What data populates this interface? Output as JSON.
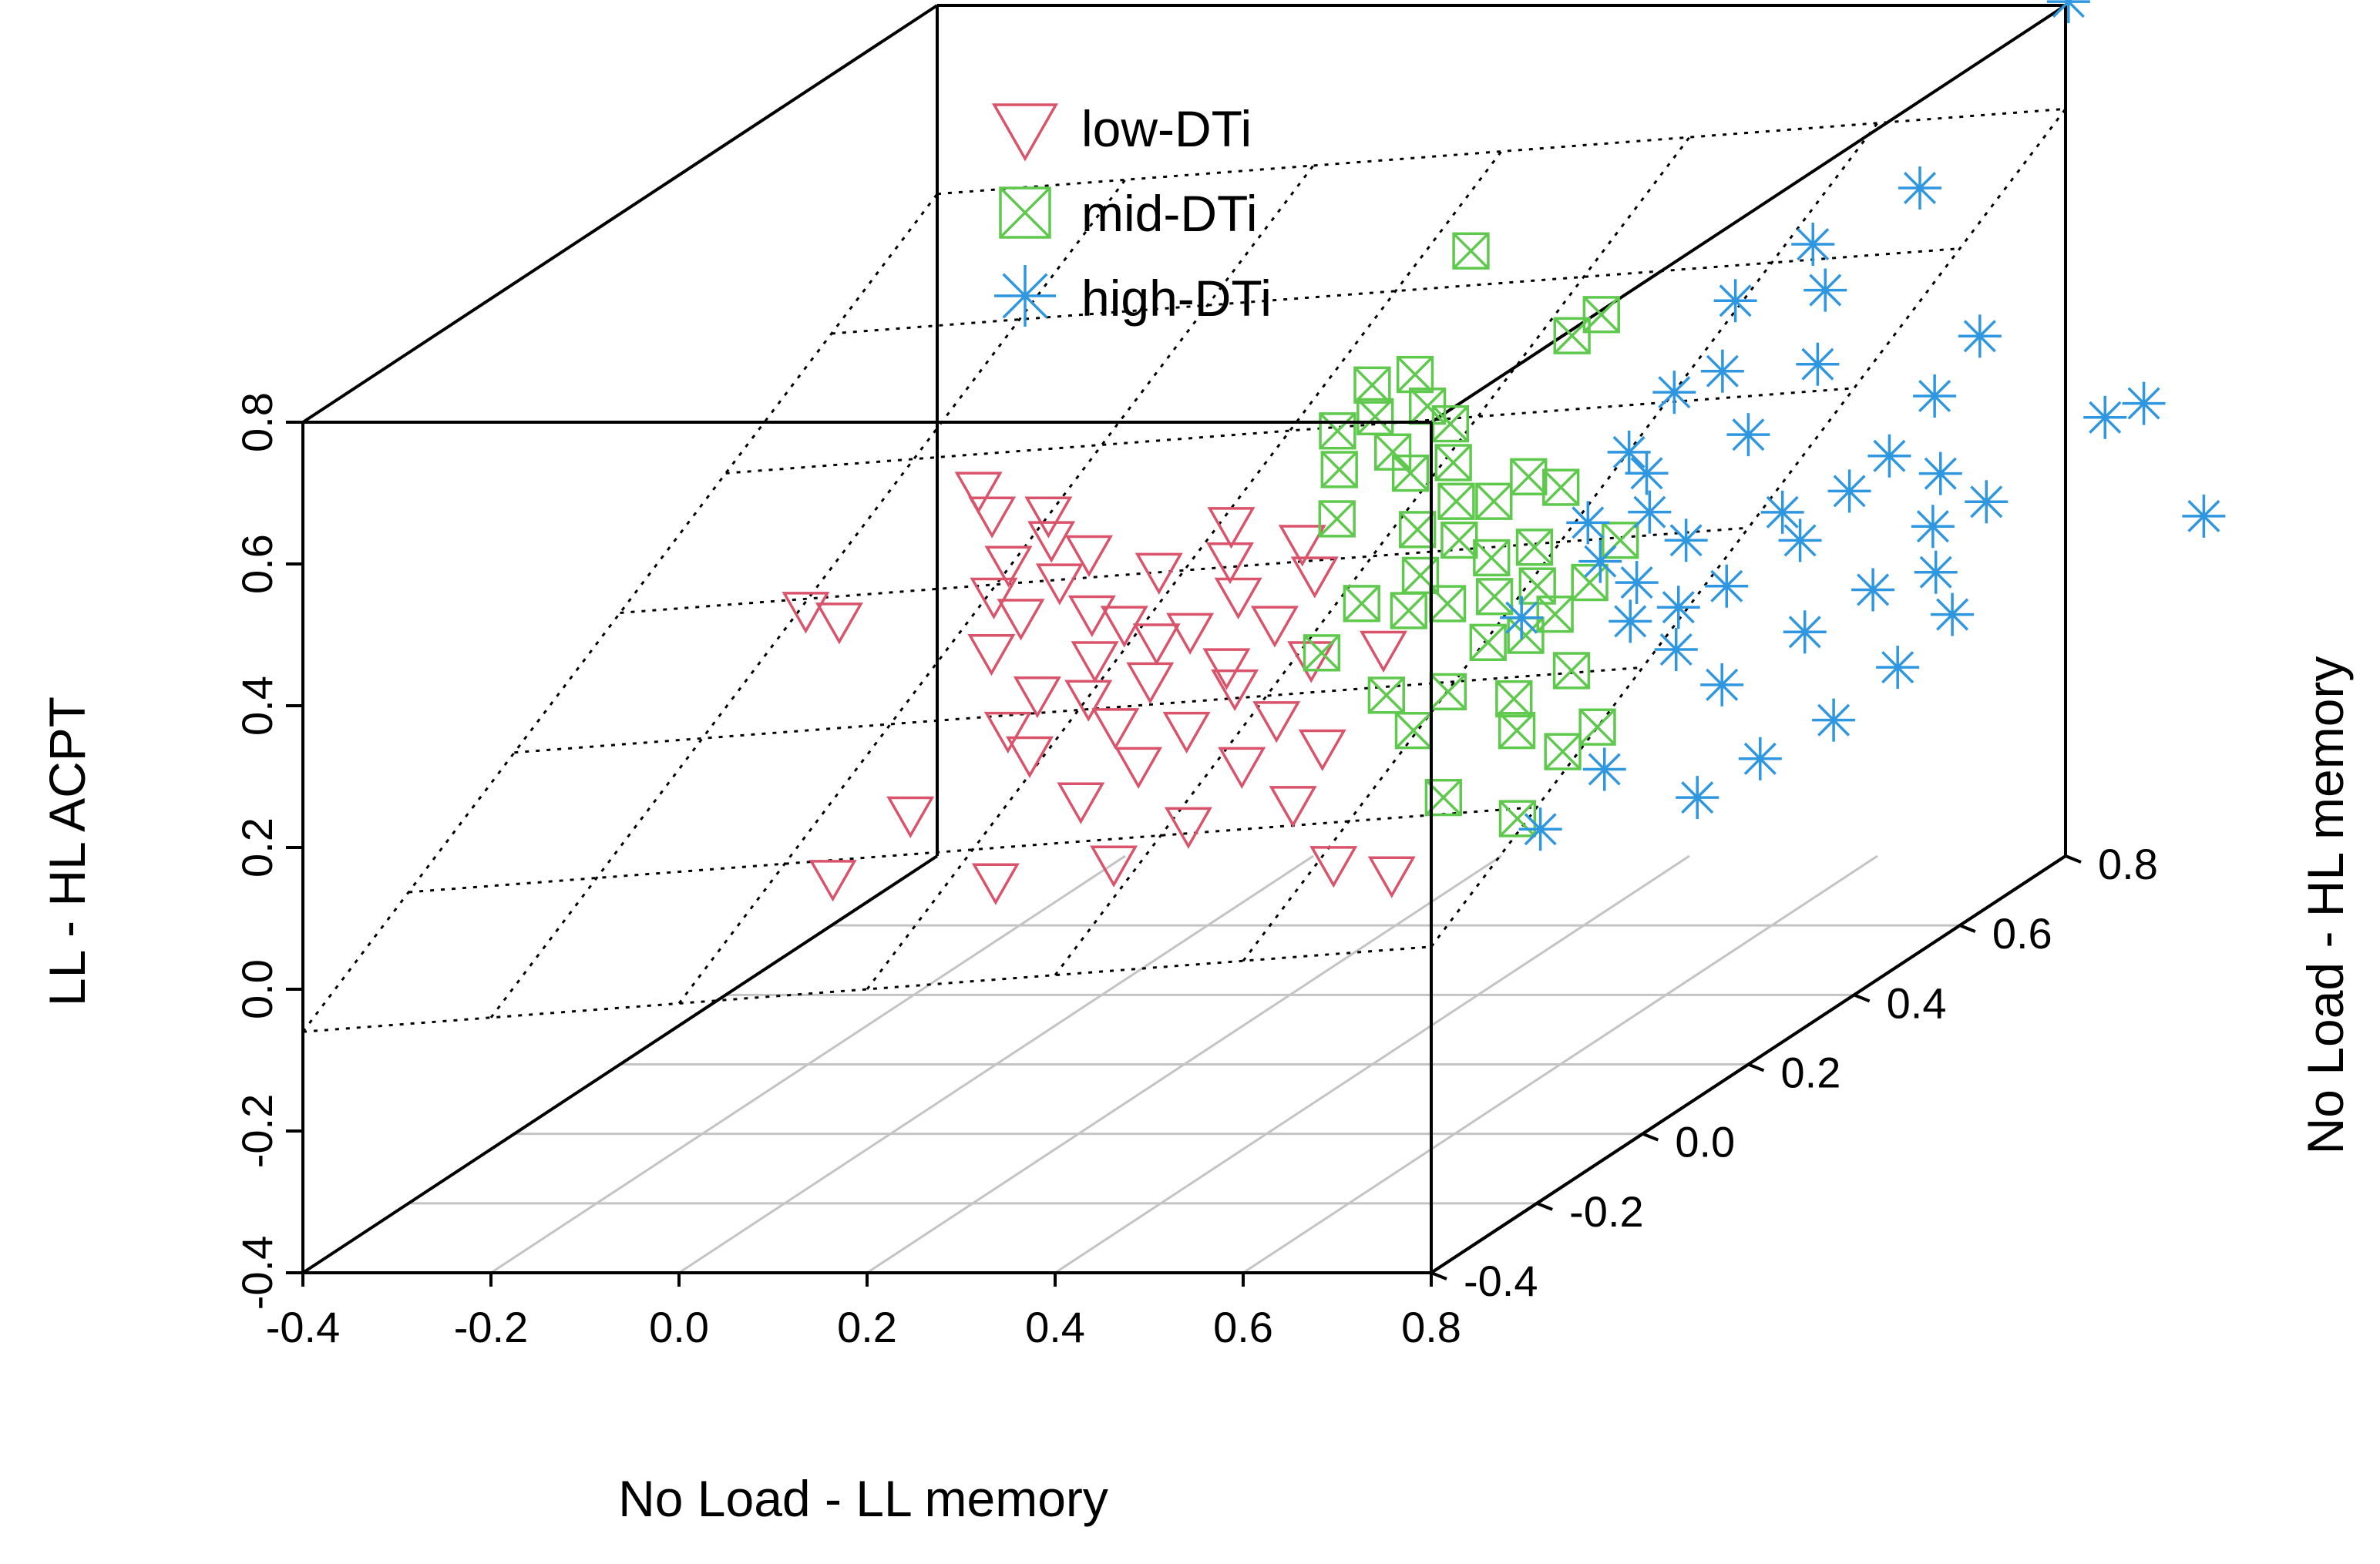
{
  "chart_data": {
    "type": "scatter3d",
    "title": "",
    "xlabel": "No Load - LL memory",
    "ylabel": "No Load - HL memory",
    "zlabel": "LL - HL ACPT",
    "xlim": [
      -0.4,
      0.8
    ],
    "ylim": [
      -0.4,
      0.8
    ],
    "zlim": [
      -0.4,
      0.8
    ],
    "x_ticks": [
      "-0.4",
      "-0.2",
      "0.0",
      "0.2",
      "0.4",
      "0.6",
      "0.8"
    ],
    "y_ticks": [
      "-0.4",
      "-0.2",
      "0.0",
      "0.2",
      "0.4",
      "0.6",
      "0.8"
    ],
    "z_ticks": [
      "-0.4",
      "-0.2",
      "0.0",
      "0.2",
      "0.4",
      "0.6",
      "0.8"
    ],
    "grid": "floor",
    "regression_plane": true,
    "legend_position": "top-center",
    "colors": {
      "low": "#d9536b",
      "mid": "#5ec94d",
      "high": "#2f96e0"
    },
    "series": [
      {
        "name": "low-DTi",
        "marker": "triangle-down",
        "color": "#d9536b",
        "points": [
          [
            -0.18,
            0.16,
            0.26
          ],
          [
            -0.15,
            0.17,
            0.24
          ],
          [
            -0.03,
            0.22,
            0.4
          ],
          [
            -0.01,
            0.21,
            0.37
          ],
          [
            0.02,
            0.16,
            0.28
          ],
          [
            0.04,
            0.12,
            0.22
          ],
          [
            0.06,
            0.14,
            0.26
          ],
          [
            0.03,
            0.17,
            0.32
          ],
          [
            0.05,
            0.21,
            0.37
          ],
          [
            0.07,
            0.18,
            0.35
          ],
          [
            0.09,
            0.16,
            0.3
          ],
          [
            0.11,
            0.18,
            0.33
          ],
          [
            0.08,
            0.08,
            0.13
          ],
          [
            0.1,
            0.1,
            0.17
          ],
          [
            0.13,
            0.15,
            0.26
          ],
          [
            0.12,
            0.05,
            0.11
          ],
          [
            0.15,
            0.12,
            0.21
          ],
          [
            0.17,
            0.14,
            0.25
          ],
          [
            0.19,
            0.17,
            0.31
          ],
          [
            0.16,
            0.09,
            0.17
          ],
          [
            0.2,
            0.07,
            0.14
          ],
          [
            0.22,
            0.1,
            0.19
          ],
          [
            0.21,
            0.13,
            0.23
          ],
          [
            0.18,
            0.04,
            0.05
          ],
          [
            0.24,
            0.14,
            0.24
          ],
          [
            0.26,
            0.18,
            0.32
          ],
          [
            0.23,
            0.06,
            0.09
          ],
          [
            0.27,
            0.08,
            0.13
          ],
          [
            0.29,
            0.12,
            0.2
          ],
          [
            0.28,
            0.16,
            0.28
          ],
          [
            0.31,
            0.1,
            0.18
          ],
          [
            0.33,
            0.14,
            0.25
          ],
          [
            0.3,
            0.03,
            0.02
          ],
          [
            0.34,
            0.06,
            0.09
          ],
          [
            0.36,
            0.09,
            0.14
          ],
          [
            0.35,
            0.18,
            0.3
          ],
          [
            0.38,
            0.12,
            0.21
          ],
          [
            0.4,
            0.05,
            0.04
          ],
          [
            0.42,
            0.07,
            0.11
          ],
          [
            0.46,
            0.02,
            -0.03
          ],
          [
            0.14,
            -0.05,
            -0.02
          ],
          [
            0.26,
            -0.04,
            0.0
          ],
          [
            0.55,
            -0.03,
            -0.02
          ],
          [
            -0.05,
            -0.02,
            -0.03
          ],
          [
            0.01,
            0.02,
            0.04
          ],
          [
            0.32,
            0.21,
            0.33
          ],
          [
            0.25,
            0.2,
            0.36
          ],
          [
            0.44,
            0.15,
            0.21
          ]
        ]
      },
      {
        "name": "mid-DTi",
        "marker": "boxed-x",
        "color": "#5ec94d",
        "points": [
          [
            0.37,
            0.44,
            0.63
          ],
          [
            0.5,
            0.4,
            0.53
          ],
          [
            0.52,
            0.42,
            0.55
          ],
          [
            0.29,
            0.33,
            0.43
          ],
          [
            0.31,
            0.36,
            0.48
          ],
          [
            0.33,
            0.33,
            0.45
          ],
          [
            0.35,
            0.37,
            0.49
          ],
          [
            0.38,
            0.34,
            0.46
          ],
          [
            0.36,
            0.31,
            0.41
          ],
          [
            0.39,
            0.29,
            0.39
          ],
          [
            0.41,
            0.33,
            0.44
          ],
          [
            0.43,
            0.3,
            0.4
          ],
          [
            0.45,
            0.27,
            0.36
          ],
          [
            0.42,
            0.25,
            0.33
          ],
          [
            0.44,
            0.22,
            0.28
          ],
          [
            0.47,
            0.24,
            0.32
          ],
          [
            0.49,
            0.27,
            0.36
          ],
          [
            0.51,
            0.23,
            0.3
          ],
          [
            0.48,
            0.2,
            0.25
          ],
          [
            0.53,
            0.2,
            0.26
          ],
          [
            0.55,
            0.24,
            0.31
          ],
          [
            0.57,
            0.21,
            0.27
          ],
          [
            0.54,
            0.17,
            0.21
          ],
          [
            0.58,
            0.17,
            0.22
          ],
          [
            0.6,
            0.19,
            0.24
          ],
          [
            0.62,
            0.22,
            0.27
          ],
          [
            0.59,
            0.13,
            0.15
          ],
          [
            0.61,
            0.1,
            0.12
          ],
          [
            0.64,
            0.15,
            0.18
          ],
          [
            0.5,
            0.1,
            0.12
          ],
          [
            0.52,
            0.13,
            0.16
          ],
          [
            0.46,
            0.12,
            0.16
          ],
          [
            0.56,
            0.05,
            0.05
          ],
          [
            0.67,
            0.08,
            0.1
          ],
          [
            0.65,
            0.03,
            0.03
          ],
          [
            0.4,
            0.18,
            0.26
          ],
          [
            0.38,
            0.14,
            0.21
          ],
          [
            0.34,
            0.24,
            0.35
          ],
          [
            0.32,
            0.28,
            0.4
          ],
          [
            0.55,
            0.29,
            0.37
          ],
          [
            0.63,
            0.26,
            0.31
          ],
          [
            0.69,
            0.11,
            0.12
          ],
          [
            0.45,
            0.18,
            0.25
          ],
          [
            0.51,
            0.3,
            0.38
          ]
        ]
      },
      {
        "name": "high-DTi",
        "marker": "asterisk",
        "color": "#2f96e0",
        "points": [
          [
            0.82,
            0.77,
            0.82
          ],
          [
            0.78,
            0.56,
            0.66
          ],
          [
            0.7,
            0.5,
            0.61
          ],
          [
            0.73,
            0.47,
            0.56
          ],
          [
            0.64,
            0.46,
            0.55
          ],
          [
            0.62,
            0.38,
            0.46
          ],
          [
            0.66,
            0.4,
            0.48
          ],
          [
            0.6,
            0.33,
            0.4
          ],
          [
            0.63,
            0.31,
            0.38
          ],
          [
            0.65,
            0.28,
            0.34
          ],
          [
            0.59,
            0.27,
            0.33
          ],
          [
            0.62,
            0.24,
            0.29
          ],
          [
            0.67,
            0.22,
            0.27
          ],
          [
            0.7,
            0.26,
            0.31
          ],
          [
            0.68,
            0.19,
            0.23
          ],
          [
            0.72,
            0.21,
            0.24
          ],
          [
            0.74,
            0.17,
            0.2
          ],
          [
            0.76,
            0.23,
            0.26
          ],
          [
            0.78,
            0.3,
            0.33
          ],
          [
            0.81,
            0.28,
            0.3
          ],
          [
            0.84,
            0.32,
            0.35
          ],
          [
            0.86,
            0.36,
            0.38
          ],
          [
            0.88,
            0.41,
            0.44
          ],
          [
            0.9,
            0.46,
            0.5
          ],
          [
            0.92,
            0.35,
            0.36
          ],
          [
            0.94,
            0.3,
            0.31
          ],
          [
            0.96,
            0.27,
            0.26
          ],
          [
            0.98,
            0.33,
            0.33
          ],
          [
            1.05,
            0.43,
            0.4
          ],
          [
            1.08,
            0.45,
            0.41
          ],
          [
            1.2,
            0.35,
            0.3
          ],
          [
            1.0,
            0.23,
            0.22
          ],
          [
            0.97,
            0.18,
            0.17
          ],
          [
            0.93,
            0.13,
            0.12
          ],
          [
            0.88,
            0.08,
            0.09
          ],
          [
            0.83,
            0.05,
            0.05
          ],
          [
            0.72,
            0.07,
            0.08
          ],
          [
            0.68,
            0.02,
            0.02
          ],
          [
            0.57,
            0.18,
            0.24
          ],
          [
            0.71,
            0.36,
            0.41
          ],
          [
            0.8,
            0.15,
            0.16
          ],
          [
            0.86,
            0.2,
            0.21
          ],
          [
            0.75,
            0.42,
            0.48
          ],
          [
            0.91,
            0.24,
            0.25
          ]
        ]
      }
    ]
  }
}
